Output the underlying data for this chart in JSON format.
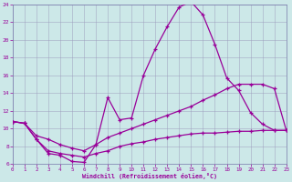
{
  "xlabel": "Windchill (Refroidissement éolien,°C)",
  "xlim": [
    0,
    23
  ],
  "ylim": [
    6,
    24
  ],
  "xticks": [
    0,
    1,
    2,
    3,
    4,
    5,
    6,
    7,
    8,
    9,
    10,
    11,
    12,
    13,
    14,
    15,
    16,
    17,
    18,
    19,
    20,
    21,
    22,
    23
  ],
  "yticks": [
    6,
    8,
    10,
    12,
    14,
    16,
    18,
    20,
    22,
    24
  ],
  "bg_color": "#cce8e8",
  "line_color": "#990099",
  "curve1_x": [
    0,
    1,
    2,
    3,
    4,
    5,
    6,
    7,
    8,
    9,
    10,
    11,
    12,
    13,
    14,
    15,
    16,
    17,
    18,
    19,
    20,
    21,
    22,
    23
  ],
  "curve1_y": [
    10.8,
    10.6,
    8.8,
    7.2,
    7.0,
    6.3,
    6.2,
    8.2,
    13.5,
    11.0,
    11.2,
    16.0,
    19.0,
    21.5,
    23.7,
    24.3,
    22.8,
    19.5,
    15.7,
    14.3,
    11.8,
    10.5,
    9.8,
    9.8
  ],
  "curve2_x": [
    0,
    1,
    2,
    3,
    4,
    5,
    6,
    7,
    8,
    9,
    10,
    11,
    12,
    13,
    14,
    15,
    16,
    17,
    18,
    19,
    20,
    21,
    22,
    23
  ],
  "curve2_y": [
    10.8,
    10.6,
    9.2,
    8.8,
    8.2,
    7.8,
    7.5,
    8.2,
    9.0,
    9.5,
    10.0,
    10.5,
    11.0,
    11.5,
    12.0,
    12.5,
    13.2,
    13.8,
    14.5,
    15.0,
    15.0,
    15.0,
    14.5,
    9.8
  ],
  "curve3_x": [
    0,
    1,
    2,
    3,
    4,
    5,
    6,
    7,
    8,
    9,
    10,
    11,
    12,
    13,
    14,
    15,
    16,
    17,
    18,
    19,
    20,
    21,
    22,
    23
  ],
  "curve3_y": [
    10.8,
    10.6,
    8.8,
    7.5,
    7.2,
    7.0,
    6.8,
    7.2,
    7.5,
    8.0,
    8.3,
    8.5,
    8.8,
    9.0,
    9.2,
    9.4,
    9.5,
    9.5,
    9.6,
    9.7,
    9.7,
    9.8,
    9.8,
    9.8
  ]
}
